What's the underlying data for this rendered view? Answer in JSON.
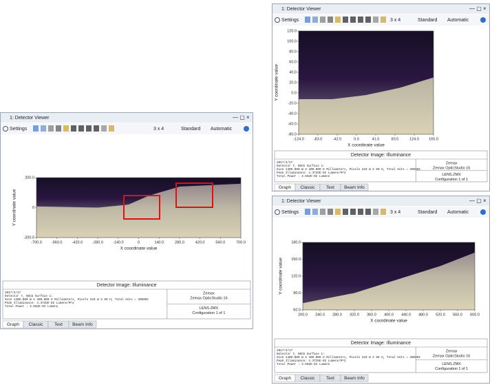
{
  "windows": [
    {
      "title": "1: Detector Viewer",
      "toolbar": {
        "settings": "Settings",
        "grid": "3 x 4",
        "standard": "Standard",
        "automatic": "Automatic"
      },
      "plot": {
        "y_label": "Y coordinate value",
        "x_label": "X coordinate value",
        "yticks": [
          "200.0",
          "0",
          "-200.0"
        ],
        "xticks": [
          "-700.0",
          "-560.0",
          "-420.0",
          "-280.0",
          "-140.0",
          "0",
          "140.0",
          "280.0",
          "420.0",
          "560.0",
          "700.0"
        ]
      },
      "info": {
        "heading": "Detector Image: Illuminance",
        "lines": [
          "2017/4/17",
          "Detector 7, NSCG Surface 1:",
          "Size 1400.000 W X 400.000 H Millimeters, Pixels 210 W X 60 H, Total Hits = 306902",
          "Peak Illuminance: 4.3725E-02 Lumens/M^2",
          "Total Power     : 3.592E-02 Lumens"
        ],
        "right_top": [
          "Zemax",
          "Zemax OpticStudio 16"
        ],
        "right_bottom": [
          "LENS.ZMX",
          "Configuration 1 of 1"
        ]
      },
      "tabs": [
        "Graph",
        "Classic",
        "Text",
        "Beam Info"
      ]
    },
    {
      "title": "1: Detector Viewer",
      "toolbar": {
        "settings": "Settings",
        "grid": "3 x 4",
        "standard": "Standard",
        "automatic": "Automatic"
      },
      "plot": {
        "y_label": "Y coordinate value",
        "x_label": "X coordinate value",
        "yticks": [
          "120.0",
          "100.0",
          "80.0",
          "60.0",
          "40.0",
          "20.0",
          "0.0",
          "-20.0",
          "-40.0",
          "-60.0",
          "-80.0"
        ],
        "xticks": [
          "-124.0",
          "-83.0",
          "-42.0",
          "0.0",
          "41.0",
          "83.0",
          "124.0",
          "165.0"
        ]
      },
      "info": {
        "heading": "Detector Image: Illuminance",
        "lines": [
          "2017/4/17",
          "Detector 7, NSCG Surface 1:",
          "Size 1400.000 W X 400.000 H Millimeters, Pixels 210 W X 60 H, Total Hits = 306902",
          "Peak Illuminance: 4.3725E-02 Lumens/M^2",
          "Total Power     : 3.592E-02 Lumens"
        ],
        "right_top": [
          "Zemax",
          "Zemax OpticStudio 16"
        ],
        "right_bottom": [
          "LENS.ZMX",
          "Configuration 1 of 1"
        ]
      },
      "tabs": [
        "Graph",
        "Classic",
        "Text",
        "Beam Info"
      ]
    },
    {
      "title": "1: Detector Viewer",
      "toolbar": {
        "settings": "Settings",
        "grid": "3 x 4",
        "standard": "Standard",
        "automatic": "Automatic"
      },
      "plot": {
        "y_label": "Y coordinate value",
        "x_label": "X coordinate value",
        "yticks": [
          "180.0",
          "150.0",
          "120.0",
          "90.0",
          "60.0"
        ],
        "xticks": [
          "200.0",
          "240.0",
          "280.0",
          "320.0",
          "360.0",
          "400.0",
          "440.0",
          "480.0",
          "520.0",
          "560.0",
          "600.0"
        ]
      },
      "info": {
        "heading": "Detector Image: Illuminance",
        "lines": [
          "2017/4/17",
          "Detector 7, NSCG Surface 1:",
          "Size 1400.000 W X 400.000 H Millimeters, Pixels 210 W X 60 H, Total Hits = 306902",
          "Peak Illuminance: 4.3725E-02 Lumens/M^2",
          "Total Power     : 3.592E-02 Lumens"
        ],
        "right_top": [
          "Zemax",
          "Zemax OpticStudio 16"
        ],
        "right_bottom": [
          "LENS.ZMX",
          "Configuration 1 of 1"
        ]
      },
      "tabs": [
        "Graph",
        "Classic",
        "Text",
        "Beam Info"
      ]
    }
  ]
}
